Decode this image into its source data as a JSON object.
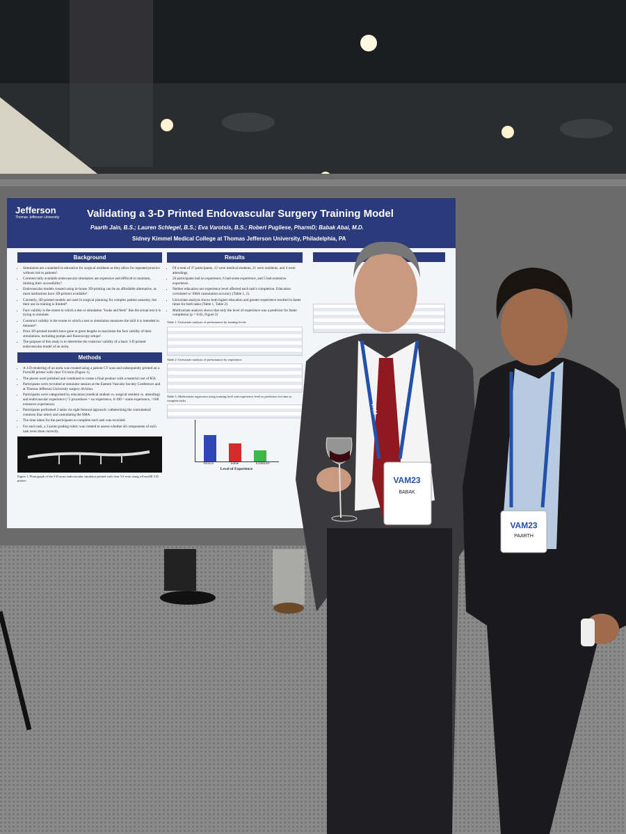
{
  "poster": {
    "logo": {
      "name": "Jefferson",
      "subtitle": "Thomas Jefferson University"
    },
    "title": "Validating a 3-D Printed Endovascular Surgery Training Model",
    "authors": "Paarth Jain, B.S.; Lauren Schlegel, B.S.; Eva Varotsis, B.S.; Robert Pugliese, PharmD; Babak Abai, M.D.",
    "affiliation": "Sidney Kimmel Medical College at Thomas Jefferson University, Philadelphia, PA",
    "sections": [
      {
        "heading": "Background",
        "items": [
          "Simulators are a standard in education for surgical residents as they allow for repeated practice without risk to patients¹.",
          "Commercially available endovascular simulators are expensive and difficult to maintain, limiting their accessibility².",
          "Endovascular models created using in-house 3D-printing can be an affordable alternative, as most institutions have 3D-printers available³.",
          "Currently, 3D-printed models are used in surgical planning for complex patient anatomy, but their use in training is limited⁴.",
          "Face validity is the extent to which a test or simulation \"looks and feels\" like the actual test it is trying to simulate.",
          "Construct validity is the extent to which a test or simulation measures the skill it is intended to measure⁵.",
          "Prior 3D-printed models have gone to great lengths to maximize the face validity of their simulations, including pumps and fluoroscopy setups⁶.",
          "The purpose of this study is to determine the construct validity of a basic 3-D printed endovascular model of an aorta."
        ]
      },
      {
        "heading": "Methods",
        "items": [
          "A 3-D rendering of an aorta was created using a patient CT scan and subsequently printed on a Form3B printer with clear V4 resin (Figure 1).",
          "The pieces were polished and combined to create a final product with a material cost of $50.",
          "Participants were recruited at simulator session at the Eastern Vascular Society Conference and at Thomas Jefferson University surgery division.",
          "Participants were categorized by education (medical student vs. surgical resident vs. attending) and endovascular experience (<5 procedures = no experience, 6-100 = some experience, >100 extensive experience).",
          "Participants performed 2 tasks via right femoral approach: catheterizing the contralateral common iliac artery and cannulating the SMA.",
          "The time taken for the participants to complete each task was recorded.",
          "For each task, a 3-point grading rubric was created to assess whether all components of each task were done correctly."
        ]
      },
      {
        "heading": "Results",
        "items": [
          "Of a total of 37 participants, 12 were medical students, 21 were residents, and 4 were attendings.",
          "26 participants had no experience, 6 had some experience, and 5 had extensive experience.",
          "Neither education nor experience level affected each task's completion. Education correlated w/ SMA cannulation accuracy (Table 1, 2).",
          "Univariate analysis shows both higher education and greater experience resulted in faster times for both tasks (Table 1, Table 2).",
          "Multivariate analysis shows that only the level of experience was a predictor for faster completion (p = 0.02, Figure 2)"
        ]
      }
    ],
    "captions": {
      "table1": "Table 1: Univariate analysis of performance by training levels",
      "table2": "Table 2: Univariate analysis of performance by experience",
      "table3": "Table 3: Multivariate regression using training level and experience level as predictors for time to complete tasks",
      "figure1": "Figure 1: Photograph of the 3-D aorta endovascular simulator printed with clear V4 resin using a Form3B 3-D printer.",
      "figure2_axis": "Level of Experience",
      "figure2_groups": [
        "Novice",
        "Some",
        "Extensive"
      ]
    }
  },
  "badges": {
    "event": "VAM23",
    "lanyard": "VAM",
    "left_name": "BABAK",
    "right_name": "PAARTH"
  }
}
